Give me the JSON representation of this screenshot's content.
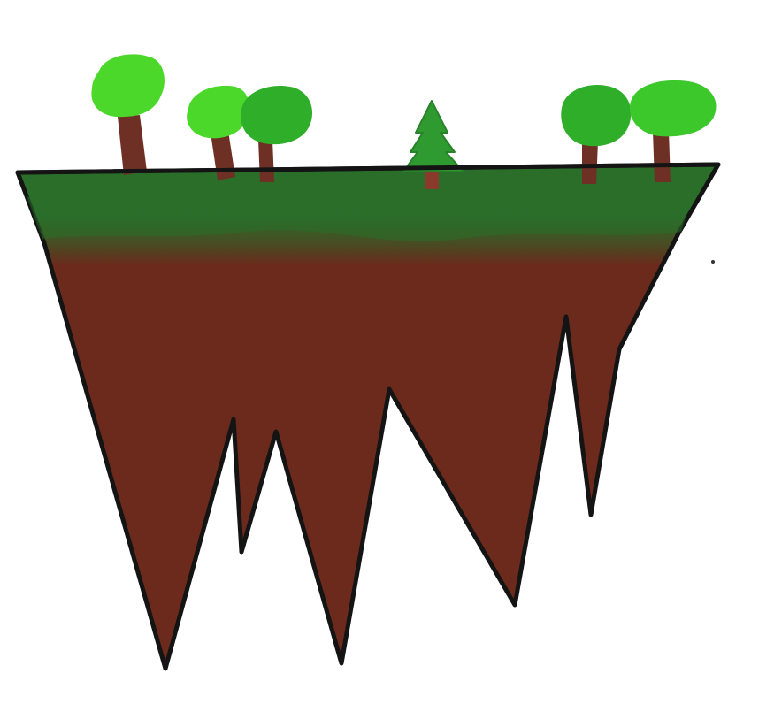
{
  "colors": {
    "background": "#ffffff",
    "grass": "#2a6e2a",
    "grass_dark": "#23602a",
    "dirt": "#6b2a1c",
    "outline": "#141414",
    "trunk": "#6e3024",
    "canopy_light": "#4bd82a",
    "canopy_mid": "#3cc82a",
    "canopy_dark": "#2fae2a",
    "pine": "#2f9a30",
    "pine_trunk": "#8a3a2a"
  },
  "scene": {
    "subject": "floating-island",
    "trees": [
      {
        "kind": "round",
        "shade": "canopy_light"
      },
      {
        "kind": "round",
        "shade": "canopy_light"
      },
      {
        "kind": "round",
        "shade": "canopy_dark"
      },
      {
        "kind": "pine",
        "shade": "pine"
      },
      {
        "kind": "round",
        "shade": "canopy_dark"
      },
      {
        "kind": "round",
        "shade": "canopy_mid"
      }
    ]
  }
}
